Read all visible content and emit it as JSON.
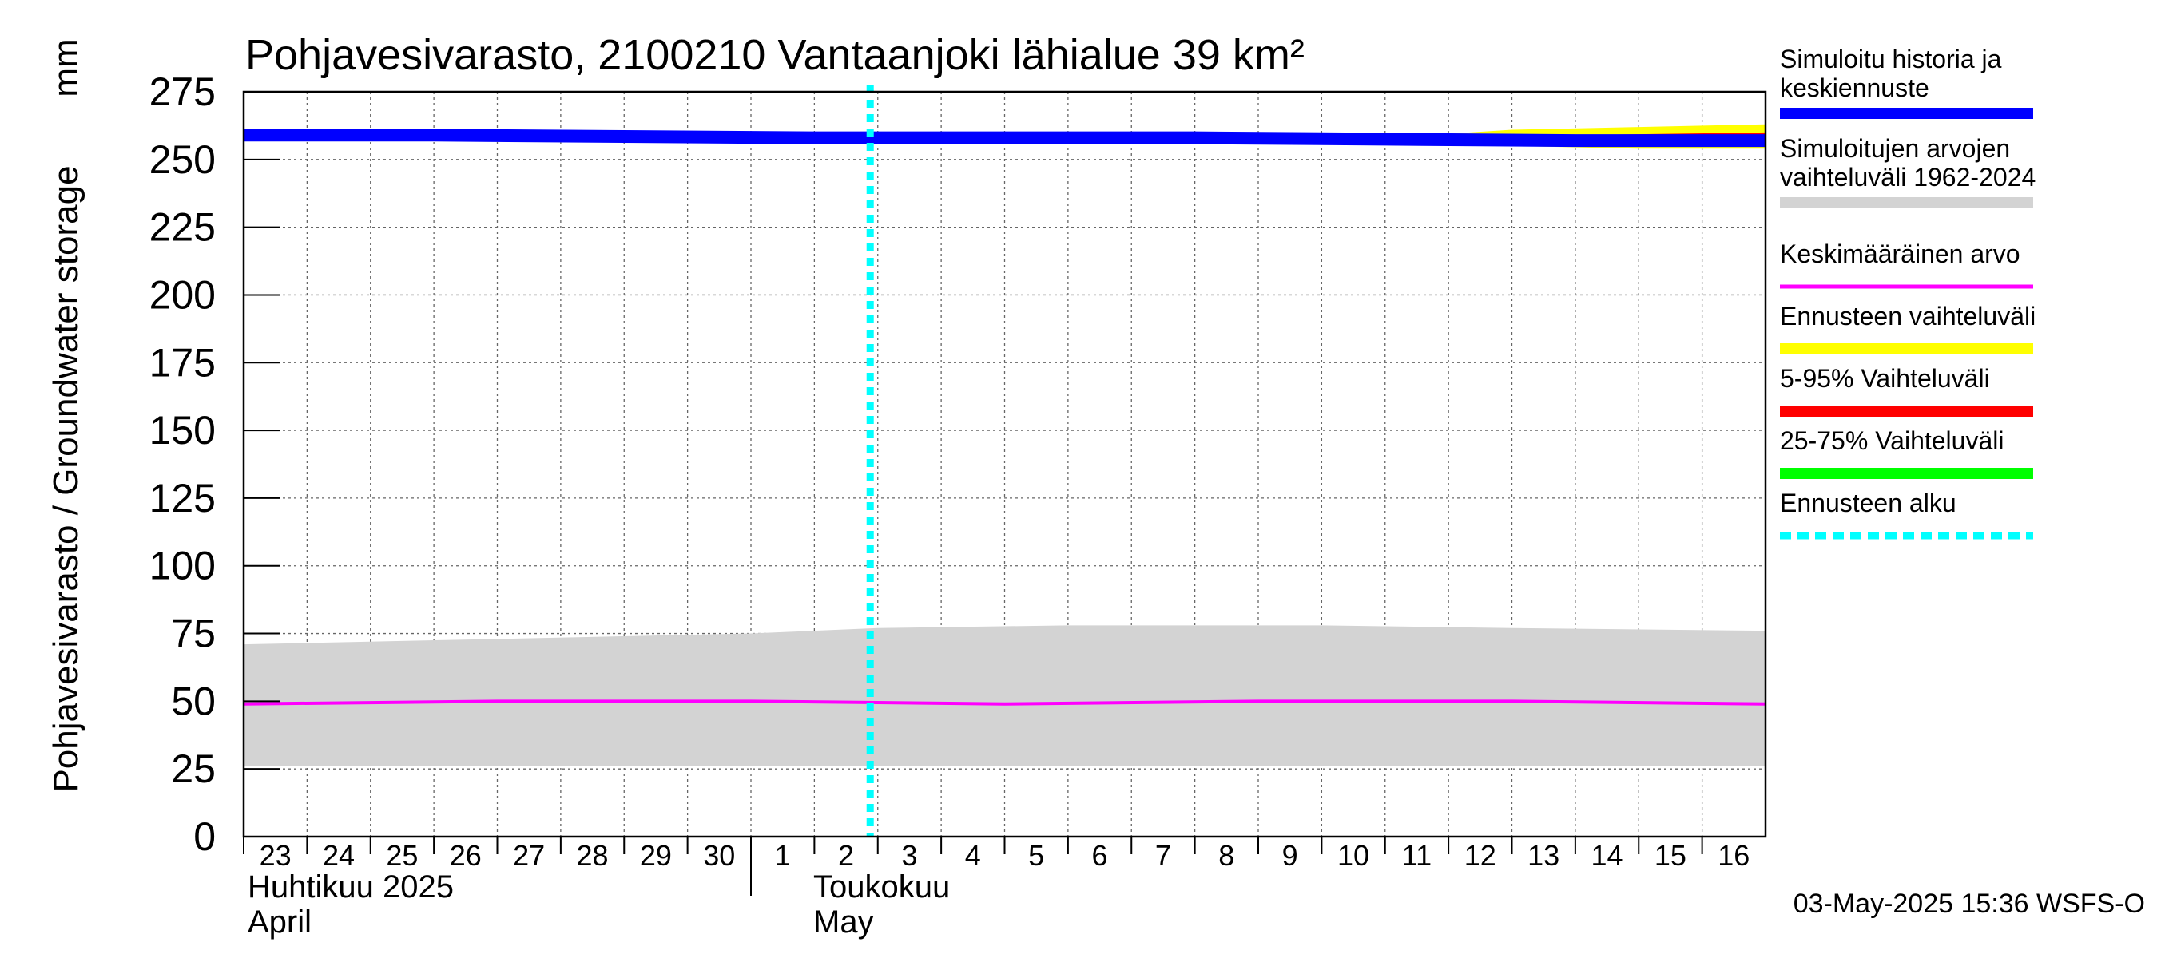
{
  "chart_data": {
    "type": "line",
    "title": "Pohjavesivarasto, 2100210 Vantaanjoki lähialue 39 km²",
    "ylabel": "Pohjavesivarasto / Groundwater storage",
    "yunit": "mm",
    "ylim": [
      0,
      275
    ],
    "yticks": [
      0,
      25,
      50,
      75,
      100,
      125,
      150,
      175,
      200,
      225,
      250,
      275
    ],
    "xlim": [
      "2025-04-23",
      "2025-05-17"
    ],
    "xtick_labels": [
      "23",
      "24",
      "25",
      "26",
      "27",
      "28",
      "29",
      "30",
      "1",
      "2",
      "3",
      "4",
      "5",
      "6",
      "7",
      "8",
      "9",
      "10",
      "11",
      "12",
      "13",
      "14",
      "15",
      "16"
    ],
    "month_labels": [
      {
        "fi": "Huhtikuu  2025",
        "en": "April"
      },
      {
        "fi": "Toukokuu",
        "en": "May"
      }
    ],
    "grid": true,
    "legend_position": "right",
    "forecast_start": "2025-05-03",
    "series": [
      {
        "name": "Simuloitu historia ja keskiennuste",
        "color": "#0000ff",
        "x": [
          "2025-04-23",
          "2025-04-26",
          "2025-04-29",
          "2025-05-02",
          "2025-05-05",
          "2025-05-08",
          "2025-05-11",
          "2025-05-14",
          "2025-05-17"
        ],
        "values": [
          259,
          259,
          258.5,
          258,
          258,
          258,
          257.5,
          257,
          257
        ]
      },
      {
        "name": "Simuloitujen arvojen vaihteluväli 1962-2024",
        "color": "#d3d3d3",
        "x": [
          "2025-04-23",
          "2025-04-27",
          "2025-05-01",
          "2025-05-03",
          "2025-05-06",
          "2025-05-10",
          "2025-05-13",
          "2025-05-17"
        ],
        "low": [
          26,
          26,
          26,
          26,
          26,
          26,
          26,
          26
        ],
        "high": [
          71,
          73,
          75,
          77,
          78,
          78,
          77,
          76
        ]
      },
      {
        "name": "Keskimääräinen arvo",
        "color": "#ff00ff",
        "x": [
          "2025-04-23",
          "2025-04-27",
          "2025-05-01",
          "2025-05-05",
          "2025-05-09",
          "2025-05-13",
          "2025-05-17"
        ],
        "values": [
          49,
          50,
          50,
          49,
          50,
          50,
          49
        ]
      },
      {
        "name": "Ennusteen vaihteluväli",
        "color": "#ffff00",
        "x": [
          "2025-05-11",
          "2025-05-13",
          "2025-05-15",
          "2025-05-17"
        ],
        "low": [
          257,
          255,
          254,
          254
        ],
        "high": [
          258,
          261,
          262,
          263
        ]
      },
      {
        "name": "5-95% Vaihteluväli",
        "color": "#ff0000",
        "x": [
          "2025-05-12",
          "2025-05-14",
          "2025-05-17"
        ],
        "low": [
          257,
          256,
          256
        ],
        "high": [
          258,
          259,
          260
        ]
      },
      {
        "name": "25-75% Vaihteluväli",
        "color": "#00ff00",
        "x": [],
        "low": [],
        "high": []
      },
      {
        "name": "Ennusteen alku",
        "color": "#00ffff",
        "x": [],
        "values": []
      }
    ],
    "footer": "03-May-2025 15:36 WSFS-O"
  }
}
